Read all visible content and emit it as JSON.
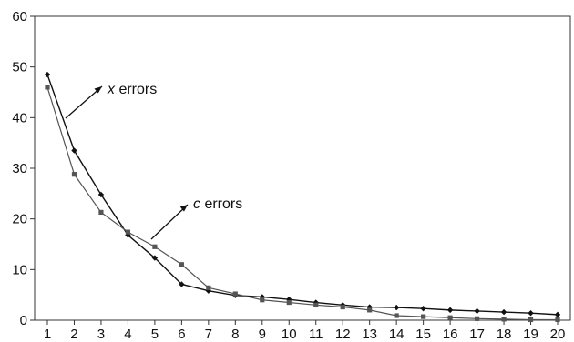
{
  "chart_data": {
    "type": "line",
    "title": "",
    "xlabel": "",
    "ylabel": "",
    "x": [
      1,
      2,
      3,
      4,
      5,
      6,
      7,
      8,
      9,
      10,
      11,
      12,
      13,
      14,
      15,
      16,
      17,
      18,
      19,
      20
    ],
    "xlim": [
      1,
      20
    ],
    "ylim": [
      0,
      60
    ],
    "yticks": [
      0,
      10,
      20,
      30,
      40,
      50,
      60
    ],
    "grid": false,
    "series": [
      {
        "name": "x errors",
        "marker": "diamond",
        "color": "#111111",
        "values": [
          48.5,
          33.5,
          24.8,
          16.8,
          12.3,
          7.1,
          5.8,
          4.9,
          4.6,
          4.1,
          3.5,
          3.0,
          2.6,
          2.5,
          2.3,
          2.0,
          1.8,
          1.6,
          1.4,
          1.1
        ]
      },
      {
        "name": "c errors",
        "marker": "square",
        "color": "#555555",
        "values": [
          46.0,
          28.8,
          21.3,
          17.4,
          14.5,
          11.0,
          6.4,
          5.2,
          4.0,
          3.5,
          3.0,
          2.6,
          2.0,
          0.9,
          0.7,
          0.5,
          0.3,
          0.2,
          0.1,
          0.1
        ]
      }
    ],
    "annotations": [
      {
        "series": 0,
        "var": "x",
        "text": " errors"
      },
      {
        "series": 1,
        "var": "c",
        "text": " errors"
      }
    ]
  }
}
